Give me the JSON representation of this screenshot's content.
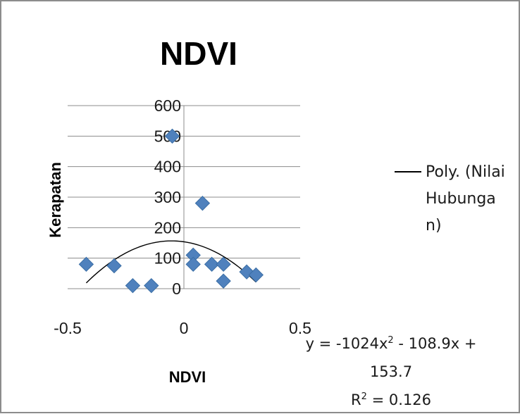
{
  "chart_data": {
    "type": "scatter",
    "title": "NDVI",
    "xlabel": "NDVI",
    "ylabel": "Kerapatan",
    "xlim": [
      -0.5,
      0.5
    ],
    "ylim": [
      0,
      600
    ],
    "x_ticks": [
      "-0.5",
      "0",
      "0.5"
    ],
    "y_ticks": [
      "0",
      "100",
      "200",
      "300",
      "400",
      "500",
      "600"
    ],
    "gridlines": "horizontal",
    "legend_position": "right",
    "legend": [
      "Poly. (Nilai Hubungan)"
    ],
    "marker_color": "#4f81bd",
    "points": [
      {
        "x": -0.05,
        "y": 500
      },
      {
        "x": 0.08,
        "y": 280
      },
      {
        "x": -0.42,
        "y": 80
      },
      {
        "x": -0.3,
        "y": 75
      },
      {
        "x": -0.22,
        "y": 10
      },
      {
        "x": -0.14,
        "y": 10
      },
      {
        "x": 0.04,
        "y": 110
      },
      {
        "x": 0.04,
        "y": 80
      },
      {
        "x": 0.12,
        "y": 80
      },
      {
        "x": 0.17,
        "y": 80
      },
      {
        "x": 0.17,
        "y": 25
      },
      {
        "x": 0.27,
        "y": 55
      },
      {
        "x": 0.31,
        "y": 45
      }
    ],
    "trendline": {
      "type": "polynomial",
      "order": 2,
      "coefficients": [
        -1024,
        -108.9,
        153.7
      ],
      "x_range": [
        -0.42,
        0.31
      ],
      "equation_lines": [
        "y = -1024x² - 108.9x +",
        "153.7"
      ],
      "r_squared_label": "R² = 0.126"
    }
  }
}
